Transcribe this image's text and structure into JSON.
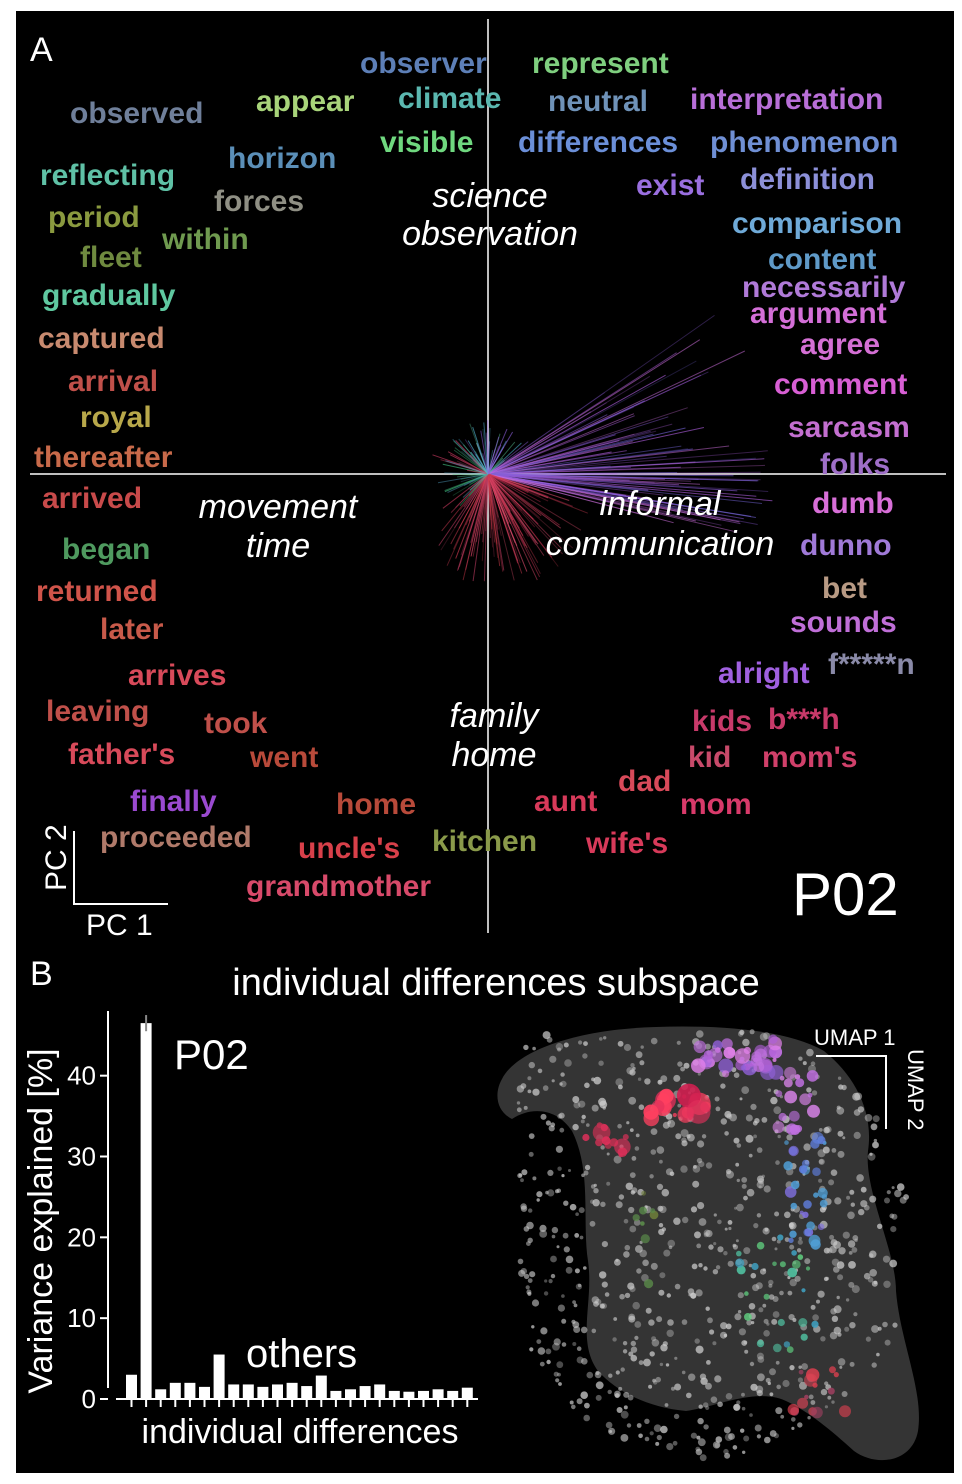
{
  "panel_a": {
    "panel_letter": "A",
    "participant": "P02",
    "axis_pc1": "PC 1",
    "axis_pc2": "PC 2",
    "quadrant_labels": [
      {
        "id": "science",
        "lines": [
          "science",
          "observation"
        ]
      },
      {
        "id": "movement",
        "lines": [
          "movement",
          "time"
        ]
      },
      {
        "id": "informal",
        "lines": [
          "informal",
          "communication"
        ]
      },
      {
        "id": "family",
        "lines": [
          "family",
          "home"
        ]
      }
    ],
    "words": [
      {
        "text": "observer",
        "color": "#5d7fb7"
      },
      {
        "text": "represent",
        "color": "#7fcf7f"
      },
      {
        "text": "observed",
        "color": "#6f7f9a"
      },
      {
        "text": "appear",
        "color": "#a8d47a"
      },
      {
        "text": "climate",
        "color": "#5bb8b0"
      },
      {
        "text": "neutral",
        "color": "#6f92b8"
      },
      {
        "text": "interpretation",
        "color": "#b86fd8"
      },
      {
        "text": "horizon",
        "color": "#5b8fb8"
      },
      {
        "text": "visible",
        "color": "#6fd87f"
      },
      {
        "text": "differences",
        "color": "#6b8fd8"
      },
      {
        "text": "phenomenon",
        "color": "#6f8fd4"
      },
      {
        "text": "reflecting",
        "color": "#5fc1a6"
      },
      {
        "text": "forces",
        "color": "#8f8f84"
      },
      {
        "text": "exist",
        "color": "#9a6fe0"
      },
      {
        "text": "definition",
        "color": "#8c90d8"
      },
      {
        "text": "period",
        "color": "#8a9a3f"
      },
      {
        "text": "within",
        "color": "#6f9a4f"
      },
      {
        "text": "comparison",
        "color": "#6faad8"
      },
      {
        "text": "fleet",
        "color": "#6f8a3f"
      },
      {
        "text": "content",
        "color": "#5f9ac8"
      },
      {
        "text": "gradually",
        "color": "#5fc8a0"
      },
      {
        "text": "necessarily",
        "color": "#b07ad8"
      },
      {
        "text": "argument",
        "color": "#d46fd8"
      },
      {
        "text": "captured",
        "color": "#c88a6f"
      },
      {
        "text": "agree",
        "color": "#d46fd4"
      },
      {
        "text": "arrival",
        "color": "#c0504a"
      },
      {
        "text": "comment",
        "color": "#d85fd4"
      },
      {
        "text": "royal",
        "color": "#b8a84a"
      },
      {
        "text": "sarcasm",
        "color": "#c36fd0"
      },
      {
        "text": "thereafter",
        "color": "#c86a4a"
      },
      {
        "text": "folks",
        "color": "#9f6fc8"
      },
      {
        "text": "arrived",
        "color": "#c84a4a"
      },
      {
        "text": "dumb",
        "color": "#d86fd8"
      },
      {
        "text": "began",
        "color": "#4f9a5f"
      },
      {
        "text": "dunno",
        "color": "#a07ad8"
      },
      {
        "text": "returned",
        "color": "#d0544a"
      },
      {
        "text": "bet",
        "color": "#b89a84"
      },
      {
        "text": "later",
        "color": "#c85a4a"
      },
      {
        "text": "sounds",
        "color": "#c06fd8"
      },
      {
        "text": "arrives",
        "color": "#d84a5a"
      },
      {
        "text": "alright",
        "color": "#a060e0"
      },
      {
        "text": "f*****n",
        "color": "#8a8aa8"
      },
      {
        "text": "leaving",
        "color": "#c0504a"
      },
      {
        "text": "took",
        "color": "#c0504a"
      },
      {
        "text": "kids",
        "color": "#c83a6a"
      },
      {
        "text": "b***h",
        "color": "#c83a6a"
      },
      {
        "text": "father's",
        "color": "#d84a5a"
      },
      {
        "text": "went",
        "color": "#b84a3a"
      },
      {
        "text": "kid",
        "color": "#c84a6a"
      },
      {
        "text": "mom's",
        "color": "#d0406a"
      },
      {
        "text": "dad",
        "color": "#d84a5a"
      },
      {
        "text": "finally",
        "color": "#9a4ad0"
      },
      {
        "text": "home",
        "color": "#b84a3a"
      },
      {
        "text": "aunt",
        "color": "#d83a5a"
      },
      {
        "text": "mom",
        "color": "#d83a6a"
      },
      {
        "text": "proceeded",
        "color": "#b07a6a"
      },
      {
        "text": "uncle's",
        "color": "#d8404a"
      },
      {
        "text": "kitchen",
        "color": "#8a9a4a"
      },
      {
        "text": "wife's",
        "color": "#d83a5a"
      },
      {
        "text": "grandmother",
        "color": "#d84a6a"
      }
    ]
  },
  "panel_b": {
    "panel_letter": "B",
    "title": "individual differences subspace",
    "umap_1": "UMAP 1",
    "umap_2": "UMAP 2",
    "p02_label": "P02",
    "others_label": "others"
  },
  "chart_data": {
    "type": "bar",
    "xlabel": "individual differences",
    "ylabel": "Variance explained [%]",
    "ylim": [
      0,
      48
    ],
    "yticks": [
      0,
      10,
      20,
      30,
      40
    ],
    "values": [
      3,
      46.5,
      1.2,
      2,
      2,
      1.5,
      5.5,
      1.8,
      1.8,
      1.5,
      1.8,
      2,
      1.6,
      2.9,
      1,
      1.2,
      1.6,
      1.8,
      1,
      0.9,
      1,
      1.2,
      1,
      1.4
    ],
    "grid": false
  }
}
